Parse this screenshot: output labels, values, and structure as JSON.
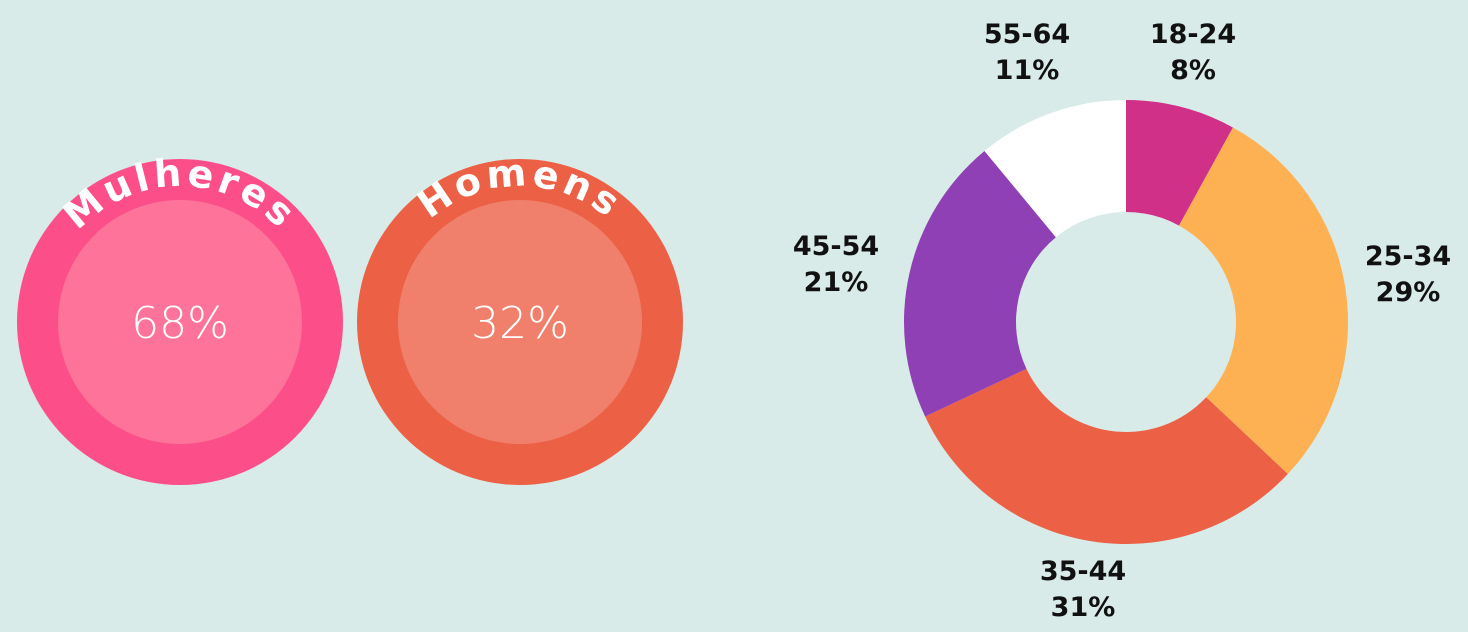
{
  "chart_data": [
    {
      "type": "circles",
      "categories": [
        "Mulheres",
        "Homens"
      ],
      "values": [
        68,
        32
      ],
      "value_labels": [
        "68%",
        "32%"
      ],
      "colors": [
        "#fc4f8a",
        "#ec6045"
      ],
      "inner_colors": [
        "#fd7399",
        "#f0806b"
      ]
    },
    {
      "type": "donut",
      "categories": [
        "18-24",
        "25-34",
        "35-44",
        "45-54",
        "55-64"
      ],
      "values": [
        8,
        29,
        31,
        21,
        11
      ],
      "value_labels": [
        "8%",
        "29%",
        "31%",
        "21%",
        "11%"
      ],
      "colors": [
        "#d03087",
        "#fdb152",
        "#ec6045",
        "#8e40b4",
        "#ffffff"
      ]
    }
  ]
}
